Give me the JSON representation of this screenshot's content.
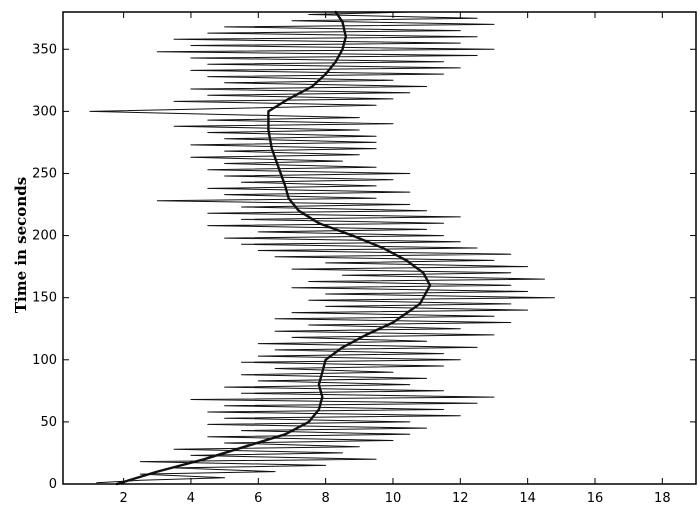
{
  "chart_data": {
    "type": "line",
    "title": "",
    "xlabel": "",
    "ylabel": "Time in seconds",
    "xlim": [
      0.2,
      19
    ],
    "ylim": [
      0,
      380
    ],
    "x_ticks": [
      2,
      4,
      6,
      8,
      10,
      12,
      14,
      16,
      18
    ],
    "y_ticks": [
      0,
      50,
      100,
      150,
      200,
      250,
      300,
      350
    ],
    "grid": false,
    "legend": "none",
    "colors": {
      "line": "#111111",
      "axis": "#000000",
      "background": "#ffffff"
    },
    "series": [
      {
        "style": "smooth",
        "points": [
          [
            1.8,
            0
          ],
          [
            3.0,
            10
          ],
          [
            4.4,
            20
          ],
          [
            5.6,
            30
          ],
          [
            6.8,
            40
          ],
          [
            7.5,
            50
          ],
          [
            7.8,
            60
          ],
          [
            7.9,
            70
          ],
          [
            7.8,
            80
          ],
          [
            7.9,
            90
          ],
          [
            8.0,
            100
          ],
          [
            8.5,
            110
          ],
          [
            9.2,
            120
          ],
          [
            10.0,
            130
          ],
          [
            10.8,
            145
          ],
          [
            11.1,
            160
          ],
          [
            10.9,
            170
          ],
          [
            10.4,
            180
          ],
          [
            9.7,
            190
          ],
          [
            8.8,
            200
          ],
          [
            7.8,
            210
          ],
          [
            7.2,
            220
          ],
          [
            6.9,
            230
          ],
          [
            6.8,
            240
          ],
          [
            6.6,
            255
          ],
          [
            6.4,
            270
          ],
          [
            6.3,
            285
          ],
          [
            6.3,
            300
          ],
          [
            6.9,
            310
          ],
          [
            7.6,
            320
          ],
          [
            8.0,
            330
          ],
          [
            8.3,
            340
          ],
          [
            8.5,
            350
          ],
          [
            8.6,
            360
          ],
          [
            8.5,
            372
          ],
          [
            8.3,
            380
          ]
        ]
      },
      {
        "style": "noisy",
        "points": [
          [
            1.2,
            1
          ],
          [
            2.5,
            3
          ],
          [
            5.0,
            5
          ],
          [
            2.5,
            8
          ],
          [
            6.5,
            10
          ],
          [
            3.5,
            13
          ],
          [
            8.0,
            15
          ],
          [
            2.5,
            18
          ],
          [
            9.5,
            20
          ],
          [
            4.0,
            23
          ],
          [
            8.5,
            25
          ],
          [
            3.5,
            28
          ],
          [
            9.0,
            30
          ],
          [
            5.0,
            33
          ],
          [
            10.0,
            35
          ],
          [
            4.5,
            38
          ],
          [
            10.5,
            40
          ],
          [
            5.5,
            43
          ],
          [
            11.0,
            45
          ],
          [
            4.5,
            48
          ],
          [
            10.5,
            50
          ],
          [
            5.0,
            53
          ],
          [
            12.0,
            55
          ],
          [
            4.5,
            58
          ],
          [
            11.5,
            60
          ],
          [
            5.0,
            63
          ],
          [
            12.5,
            65
          ],
          [
            4.0,
            68
          ],
          [
            13.0,
            70
          ],
          [
            5.5,
            73
          ],
          [
            11.5,
            75
          ],
          [
            5.0,
            78
          ],
          [
            10.5,
            80
          ],
          [
            6.0,
            83
          ],
          [
            11.0,
            85
          ],
          [
            5.5,
            88
          ],
          [
            10.0,
            90
          ],
          [
            6.5,
            93
          ],
          [
            11.5,
            95
          ],
          [
            5.5,
            98
          ],
          [
            12.0,
            100
          ],
          [
            6.0,
            103
          ],
          [
            11.5,
            105
          ],
          [
            6.5,
            108
          ],
          [
            12.5,
            110
          ],
          [
            6.0,
            113
          ],
          [
            11.0,
            115
          ],
          [
            7.0,
            118
          ],
          [
            13.0,
            120
          ],
          [
            6.5,
            123
          ],
          [
            12.0,
            125
          ],
          [
            7.5,
            128
          ],
          [
            13.5,
            130
          ],
          [
            6.5,
            133
          ],
          [
            13.0,
            135
          ],
          [
            7.0,
            138
          ],
          [
            14.0,
            140
          ],
          [
            8.0,
            143
          ],
          [
            13.5,
            145
          ],
          [
            7.5,
            148
          ],
          [
            14.8,
            150
          ],
          [
            8.0,
            153
          ],
          [
            14.0,
            155
          ],
          [
            7.0,
            158
          ],
          [
            13.5,
            160
          ],
          [
            7.5,
            163
          ],
          [
            14.5,
            165
          ],
          [
            8.5,
            168
          ],
          [
            13.5,
            170
          ],
          [
            7.0,
            173
          ],
          [
            14.0,
            175
          ],
          [
            8.0,
            178
          ],
          [
            13.0,
            180
          ],
          [
            6.5,
            183
          ],
          [
            13.5,
            185
          ],
          [
            6.0,
            188
          ],
          [
            12.5,
            190
          ],
          [
            5.5,
            193
          ],
          [
            12.0,
            195
          ],
          [
            5.0,
            198
          ],
          [
            11.5,
            200
          ],
          [
            6.0,
            203
          ],
          [
            11.0,
            205
          ],
          [
            4.5,
            208
          ],
          [
            11.5,
            210
          ],
          [
            5.5,
            213
          ],
          [
            12.0,
            215
          ],
          [
            4.5,
            218
          ],
          [
            11.0,
            220
          ],
          [
            5.5,
            223
          ],
          [
            10.5,
            225
          ],
          [
            3.0,
            228
          ],
          [
            9.5,
            230
          ],
          [
            5.0,
            233
          ],
          [
            10.5,
            235
          ],
          [
            4.5,
            238
          ],
          [
            9.5,
            240
          ],
          [
            5.5,
            243
          ],
          [
            10.0,
            245
          ],
          [
            5.0,
            248
          ],
          [
            10.5,
            250
          ],
          [
            4.5,
            253
          ],
          [
            9.5,
            255
          ],
          [
            5.0,
            258
          ],
          [
            8.5,
            260
          ],
          [
            4.0,
            263
          ],
          [
            9.0,
            265
          ],
          [
            5.0,
            268
          ],
          [
            9.5,
            270
          ],
          [
            4.0,
            273
          ],
          [
            9.5,
            275
          ],
          [
            5.0,
            278
          ],
          [
            9.5,
            280
          ],
          [
            4.5,
            283
          ],
          [
            9.0,
            285
          ],
          [
            3.5,
            288
          ],
          [
            10.0,
            290
          ],
          [
            4.5,
            293
          ],
          [
            9.0,
            295
          ],
          [
            1.0,
            300
          ],
          [
            9.5,
            305
          ],
          [
            3.5,
            308
          ],
          [
            10.0,
            310
          ],
          [
            4.5,
            313
          ],
          [
            10.5,
            315
          ],
          [
            4.0,
            318
          ],
          [
            11.0,
            320
          ],
          [
            5.0,
            323
          ],
          [
            10.0,
            325
          ],
          [
            4.5,
            328
          ],
          [
            11.5,
            330
          ],
          [
            4.0,
            333
          ],
          [
            12.0,
            335
          ],
          [
            4.5,
            338
          ],
          [
            11.5,
            340
          ],
          [
            4.0,
            343
          ],
          [
            12.5,
            345
          ],
          [
            3.0,
            348
          ],
          [
            13.0,
            350
          ],
          [
            4.0,
            353
          ],
          [
            12.0,
            355
          ],
          [
            3.5,
            358
          ],
          [
            12.5,
            360
          ],
          [
            4.5,
            363
          ],
          [
            12.0,
            365
          ],
          [
            5.0,
            368
          ],
          [
            13.0,
            370
          ],
          [
            7.0,
            373
          ],
          [
            12.5,
            375
          ],
          [
            7.5,
            378
          ],
          [
            10.5,
            380
          ]
        ]
      }
    ]
  }
}
